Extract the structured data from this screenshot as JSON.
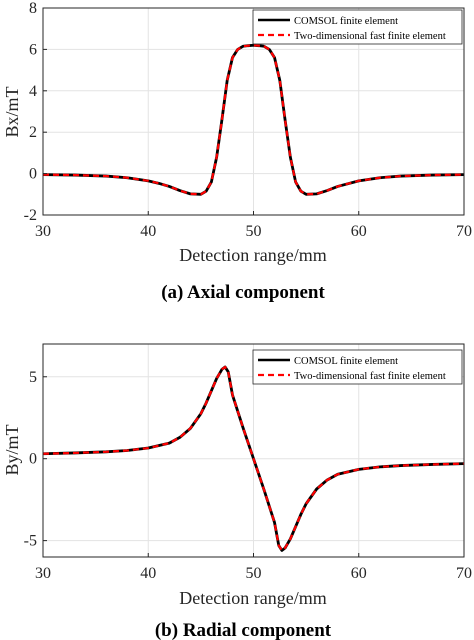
{
  "chart_data": [
    {
      "type": "line",
      "caption": "(a) Axial component",
      "xlabel": "Detection range/mm",
      "ylabel": "Bx/mT",
      "xlim": [
        30,
        70
      ],
      "ylim": [
        -2,
        8
      ],
      "xticks": [
        "30",
        "40",
        "50",
        "60",
        "70"
      ],
      "yticks": [
        "-2",
        "0",
        "2",
        "4",
        "6",
        "8"
      ],
      "grid": true,
      "legend_position": "top-right",
      "x": [
        30,
        33,
        36,
        38,
        40,
        41,
        42,
        43,
        44,
        45,
        45.5,
        46,
        46.5,
        47,
        47.5,
        48,
        48.5,
        49,
        49.5,
        50,
        50.5,
        51,
        51.5,
        52,
        52.5,
        53,
        53.5,
        54,
        54.5,
        55,
        56,
        57,
        58,
        60,
        62,
        64,
        67,
        70
      ],
      "series": [
        {
          "name": "COMSOL finite element",
          "color": "#000000",
          "dash": "solid",
          "values": [
            -0.05,
            -0.07,
            -0.12,
            -0.2,
            -0.35,
            -0.47,
            -0.62,
            -0.82,
            -0.98,
            -1.0,
            -0.85,
            -0.4,
            0.8,
            2.6,
            4.5,
            5.6,
            6.0,
            6.15,
            6.18,
            6.2,
            6.18,
            6.15,
            6.0,
            5.6,
            4.5,
            2.6,
            0.8,
            -0.4,
            -0.85,
            -1.0,
            -0.98,
            -0.82,
            -0.62,
            -0.35,
            -0.2,
            -0.12,
            -0.07,
            -0.05
          ]
        },
        {
          "name": "Two-dimensional fast finite element",
          "color": "#ff0000",
          "dash": "dashed",
          "values": [
            -0.05,
            -0.07,
            -0.12,
            -0.2,
            -0.35,
            -0.47,
            -0.62,
            -0.82,
            -0.98,
            -1.0,
            -0.85,
            -0.4,
            0.8,
            2.6,
            4.5,
            5.6,
            6.0,
            6.15,
            6.18,
            6.2,
            6.18,
            6.15,
            6.0,
            5.6,
            4.5,
            2.6,
            0.8,
            -0.4,
            -0.85,
            -1.0,
            -0.98,
            -0.82,
            -0.62,
            -0.35,
            -0.2,
            -0.12,
            -0.07,
            -0.05
          ]
        }
      ]
    },
    {
      "type": "line",
      "caption": "(b) Radial component",
      "xlabel": "Detection range/mm",
      "ylabel": "By/mT",
      "xlim": [
        30,
        70
      ],
      "ylim": [
        -6,
        7
      ],
      "xticks": [
        "30",
        "40",
        "50",
        "60",
        "70"
      ],
      "yticks": [
        "-5",
        "0",
        "5"
      ],
      "grid": true,
      "legend_position": "top-right",
      "x": [
        30,
        33,
        36,
        38,
        40,
        42,
        43,
        44,
        45,
        45.5,
        46,
        46.5,
        47,
        47.3,
        47.6,
        48,
        49,
        50,
        51,
        52,
        52.4,
        52.7,
        53,
        53.5,
        54,
        54.5,
        55,
        56,
        57,
        58,
        60,
        62,
        64,
        67,
        70
      ],
      "series": [
        {
          "name": "COMSOL finite element",
          "color": "#000000",
          "dash": "solid",
          "values": [
            0.3,
            0.35,
            0.42,
            0.5,
            0.65,
            0.95,
            1.3,
            1.85,
            2.75,
            3.4,
            4.15,
            4.9,
            5.45,
            5.6,
            5.3,
            3.9,
            1.9,
            0,
            -1.9,
            -3.9,
            -5.3,
            -5.6,
            -5.45,
            -4.9,
            -4.15,
            -3.4,
            -2.75,
            -1.85,
            -1.3,
            -0.95,
            -0.65,
            -0.5,
            -0.42,
            -0.35,
            -0.3
          ]
        },
        {
          "name": "Two-dimensional fast finite element",
          "color": "#ff0000",
          "dash": "dashed",
          "values": [
            0.3,
            0.35,
            0.42,
            0.5,
            0.65,
            0.95,
            1.3,
            1.85,
            2.75,
            3.4,
            4.15,
            4.9,
            5.45,
            5.6,
            5.3,
            3.9,
            1.9,
            0,
            -1.9,
            -3.9,
            -5.3,
            -5.6,
            -5.45,
            -4.9,
            -4.15,
            -3.4,
            -2.75,
            -1.85,
            -1.3,
            -0.95,
            -0.65,
            -0.5,
            -0.42,
            -0.35,
            -0.3
          ]
        }
      ]
    }
  ]
}
